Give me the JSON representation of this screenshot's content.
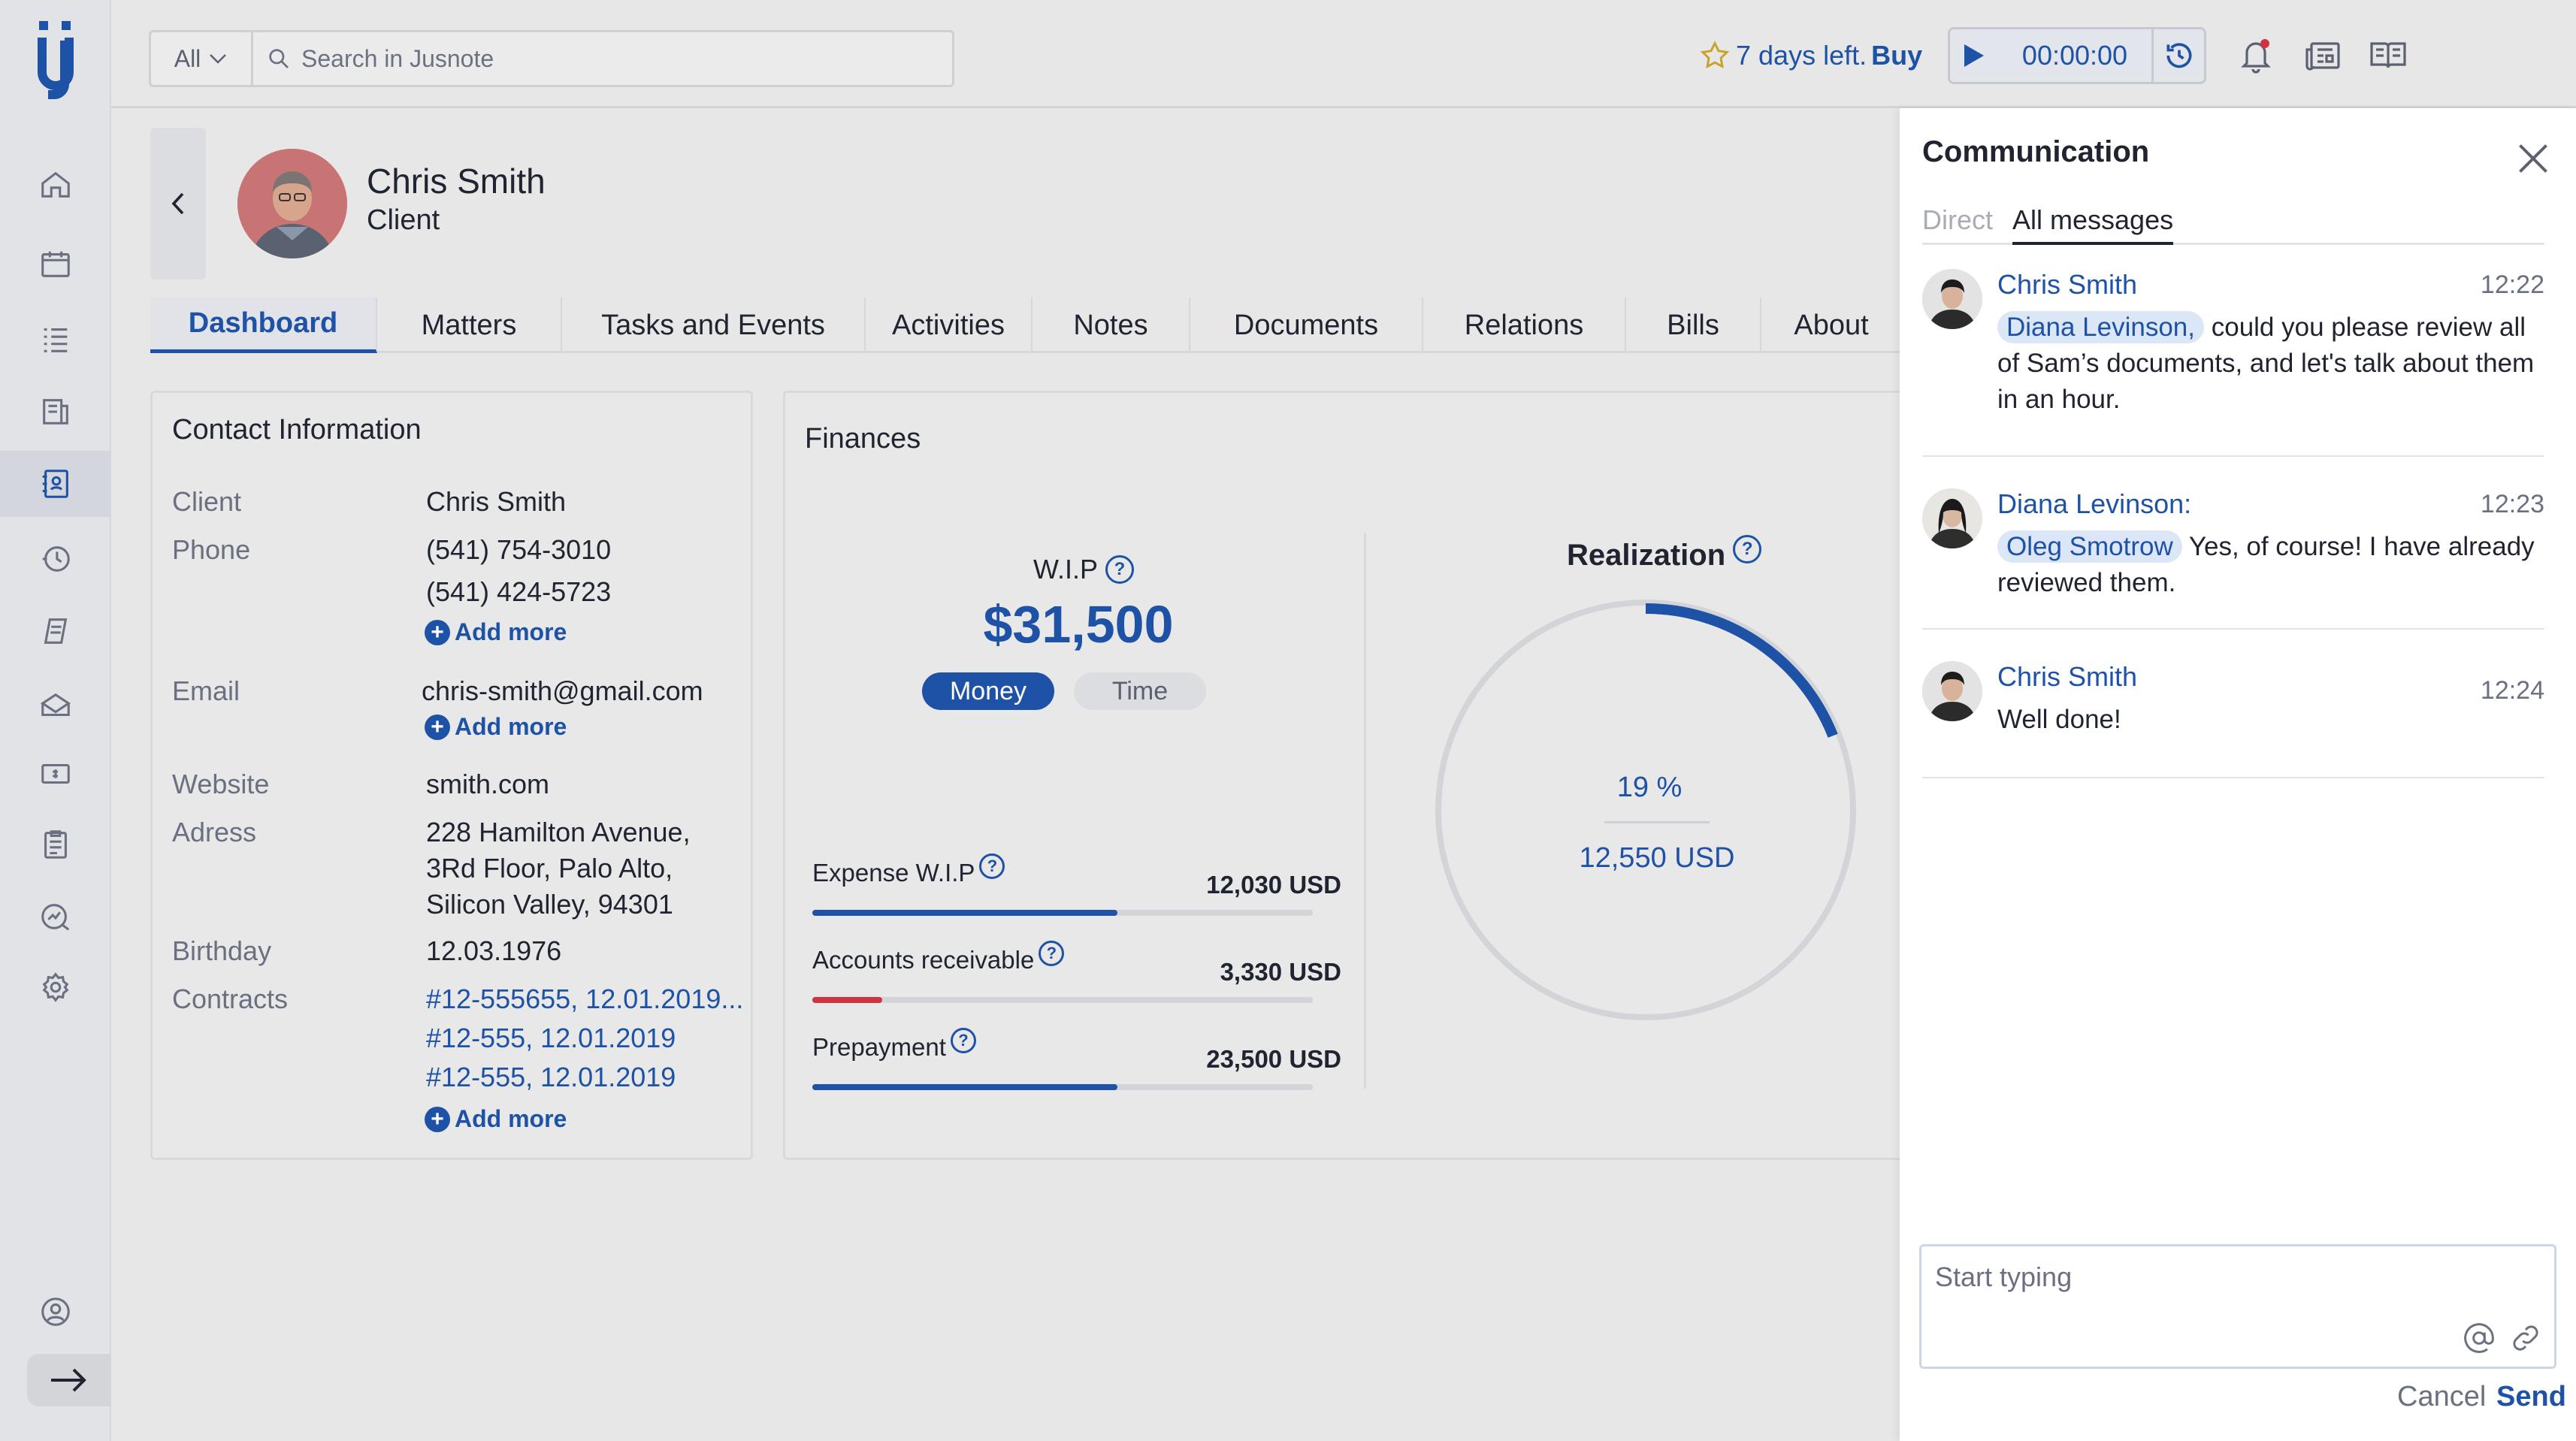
{
  "topbar": {
    "search_scope": "All",
    "search_placeholder": "Search in Jusnote",
    "trial_text": "7 days left.",
    "trial_action": "Buy",
    "timer_value": "00:00:00"
  },
  "sidebar": {
    "items": [
      "home-icon",
      "calendar-icon",
      "tasks-icon",
      "documents-icon",
      "contacts-icon",
      "time-history-icon",
      "bills-icon",
      "matters-icon",
      "payments-icon",
      "reports-icon",
      "analytics-icon",
      "settings-icon"
    ],
    "active_index": 4
  },
  "contact": {
    "name": "Chris Smith",
    "role": "Client"
  },
  "tabs": [
    "Dashboard",
    "Matters",
    "Tasks and Events",
    "Activities",
    "Notes",
    "Documents",
    "Relations",
    "Bills",
    "About"
  ],
  "contact_info": {
    "title": "Contact Information",
    "labels": {
      "client": "Client",
      "phone": "Phone",
      "email": "Email",
      "website": "Website",
      "address": "Adress",
      "birthday": "Birthday",
      "contracts": "Contracts"
    },
    "client": "Chris Smith",
    "phones": [
      "(541) 754-3010",
      "(541) 424-5723"
    ],
    "email": "chris-smith@gmail.com",
    "website": "smith.com",
    "address": [
      "228 Hamilton Avenue,",
      "3Rd Floor, Palo Alto,",
      "Silicon Valley, 94301"
    ],
    "birthday": "12.03.1976",
    "contracts": [
      "#12-555655, 12.01.2019...",
      "#12-555, 12.01.2019",
      "#12-555, 12.01.2019"
    ],
    "add_more": "Add more"
  },
  "finances": {
    "title": "Finances",
    "wip_label": "W.I.P",
    "wip_value": "$31,500",
    "toggle_money": "Money",
    "toggle_time": "Time",
    "rows": [
      {
        "label": "Expense W.I.P",
        "value": "12,030 USD",
        "fill": 0.61,
        "color": "#1e52a6"
      },
      {
        "label": "Accounts receivable",
        "value": "3,330 USD",
        "fill": 0.14,
        "color": "#d0323f"
      },
      {
        "label": "Prepayment",
        "value": "23,500 USD",
        "fill": 0.61,
        "color": "#1e52a6"
      }
    ],
    "realization_title": "Realization",
    "realization_percent": "19 %",
    "realization_fraction": 0.19,
    "realization_amount": "12,550 USD"
  },
  "communication": {
    "title": "Communication",
    "tabs": [
      "Direct",
      "All messages"
    ],
    "active_tab": 1,
    "messages": [
      {
        "author": "Chris Smith",
        "time": "12:22",
        "mention": "Diana Levinson,",
        "text": " could you please review all of Sam’s documents, and let's talk about them in an hour."
      },
      {
        "author": "Diana Levinson:",
        "time": "12:23",
        "mention": "Oleg Smotrow",
        "text": " Yes, of course! I have already reviewed them."
      },
      {
        "author": "Chris Smith",
        "time": "12:24",
        "mention": "",
        "text": "Well done!"
      }
    ],
    "compose_placeholder": "Start typing",
    "cancel_label": "Cancel",
    "send_label": "Send"
  },
  "colors": {
    "accent": "#1e52a6",
    "add_button": "#1f9a52",
    "notification_dot": "#d0323f"
  }
}
